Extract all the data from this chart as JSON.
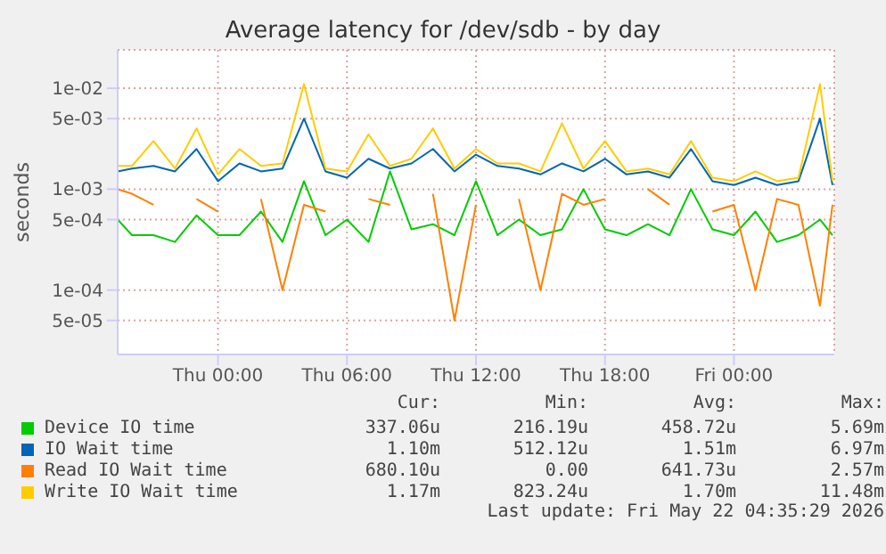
{
  "chart_data": {
    "type": "line",
    "title": "Average latency for /dev/sdb - by day",
    "ylabel": "seconds",
    "log": true,
    "grid": true,
    "legend": "bottom",
    "marker": "none",
    "line_style": "solid",
    "x": [
      "2026-05-20T19:20",
      "2026-05-20T20:00",
      "2026-05-20T21:00",
      "2026-05-20T22:00",
      "2026-05-20T23:00",
      "2026-05-21T00:00",
      "2026-05-21T01:00",
      "2026-05-21T02:00",
      "2026-05-21T03:00",
      "2026-05-21T04:00",
      "2026-05-21T05:00",
      "2026-05-21T06:00",
      "2026-05-21T07:00",
      "2026-05-21T08:00",
      "2026-05-21T09:00",
      "2026-05-21T10:00",
      "2026-05-21T11:00",
      "2026-05-21T12:00",
      "2026-05-21T13:00",
      "2026-05-21T14:00",
      "2026-05-21T15:00",
      "2026-05-21T16:00",
      "2026-05-21T17:00",
      "2026-05-21T18:00",
      "2026-05-21T19:00",
      "2026-05-21T20:00",
      "2026-05-21T21:00",
      "2026-05-21T22:00",
      "2026-05-21T23:00",
      "2026-05-22T00:00",
      "2026-05-22T01:00",
      "2026-05-22T02:00",
      "2026-05-22T03:00",
      "2026-05-22T04:00",
      "2026-05-22T04:35"
    ],
    "xlim": [
      "2026-05-20T19:20",
      "2026-05-22T04:40"
    ],
    "xticks": [
      {
        "value": "2026-05-21T00:00",
        "label": "Thu 00:00"
      },
      {
        "value": "2026-05-21T06:00",
        "label": "Thu 06:00"
      },
      {
        "value": "2026-05-21T12:00",
        "label": "Thu 12:00"
      },
      {
        "value": "2026-05-21T18:00",
        "label": "Thu 18:00"
      },
      {
        "value": "2026-05-22T00:00",
        "label": "Fri 00:00"
      }
    ],
    "ylim": [
      2.3e-05,
      0.024
    ],
    "yticks": [
      {
        "value": 5e-05,
        "label": "5e-05"
      },
      {
        "value": 0.0001,
        "label": "1e-04"
      },
      {
        "value": 0.0005,
        "label": "5e-04"
      },
      {
        "value": 0.001,
        "label": "1e-03"
      },
      {
        "value": 0.005,
        "label": "5e-03"
      },
      {
        "value": 0.01,
        "label": "1e-02"
      }
    ],
    "series": [
      {
        "name": "Device IO time",
        "color": "#00cc00",
        "values": [
          0.0005,
          0.00035,
          0.00035,
          0.0003,
          0.00055,
          0.00035,
          0.00035,
          0.0006,
          0.0003,
          0.0012,
          0.00035,
          0.0005,
          0.0003,
          0.0015,
          0.0004,
          0.00045,
          0.00035,
          0.0012,
          0.00035,
          0.0005,
          0.00035,
          0.0004,
          0.001,
          0.0004,
          0.00035,
          0.00045,
          0.00035,
          0.001,
          0.0004,
          0.00035,
          0.0006,
          0.0003,
          0.00035,
          0.0005,
          0.00035
        ]
      },
      {
        "name": "IO Wait time",
        "color": "#0066b3",
        "values": [
          0.0015,
          0.0016,
          0.0017,
          0.0015,
          0.0025,
          0.0012,
          0.0018,
          0.0015,
          0.0016,
          0.005,
          0.0015,
          0.0013,
          0.002,
          0.0016,
          0.0018,
          0.0025,
          0.0015,
          0.0022,
          0.0017,
          0.0016,
          0.0014,
          0.0018,
          0.0015,
          0.002,
          0.0014,
          0.0015,
          0.0013,
          0.0025,
          0.0012,
          0.0011,
          0.0013,
          0.0011,
          0.0012,
          0.005,
          0.0011
        ]
      },
      {
        "name": "Read IO Wait time",
        "color": "#ff8000",
        "values": [
          0.001,
          0.0009,
          0.0007,
          null,
          0.0008,
          0.0006,
          null,
          0.0008,
          0.0001,
          0.0007,
          0.0006,
          null,
          0.0008,
          0.0007,
          null,
          0.0009,
          5e-05,
          0.0007,
          null,
          0.0008,
          0.0001,
          0.0009,
          0.0007,
          0.0008,
          null,
          0.001,
          0.0007,
          null,
          0.0006,
          0.0007,
          0.0001,
          0.0008,
          0.0007,
          7e-05,
          0.0007
        ]
      },
      {
        "name": "Write IO Wait time",
        "color": "#ffcc00",
        "values": [
          0.0017,
          0.0017,
          0.003,
          0.0016,
          0.004,
          0.0014,
          0.0025,
          0.0017,
          0.0018,
          0.011,
          0.0016,
          0.0015,
          0.0035,
          0.0017,
          0.002,
          0.004,
          0.0016,
          0.0025,
          0.0018,
          0.0018,
          0.0015,
          0.0045,
          0.0016,
          0.003,
          0.0015,
          0.0016,
          0.0014,
          0.003,
          0.0013,
          0.0012,
          0.0015,
          0.0012,
          0.0013,
          0.011,
          0.0012
        ]
      }
    ],
    "annotations": [
      "Cur:",
      "Min:",
      "Avg:",
      "Max:",
      "337.06u",
      "216.19u",
      "458.72u",
      "5.69m",
      "1.10m",
      "512.12u",
      "1.51m",
      "6.97m",
      "680.10u",
      "0.00",
      "641.73u",
      "2.57m",
      "1.17m",
      "823.24u",
      "1.70m",
      "11.48m",
      "Last update: Fri May 22 04:35:29 2026"
    ]
  }
}
